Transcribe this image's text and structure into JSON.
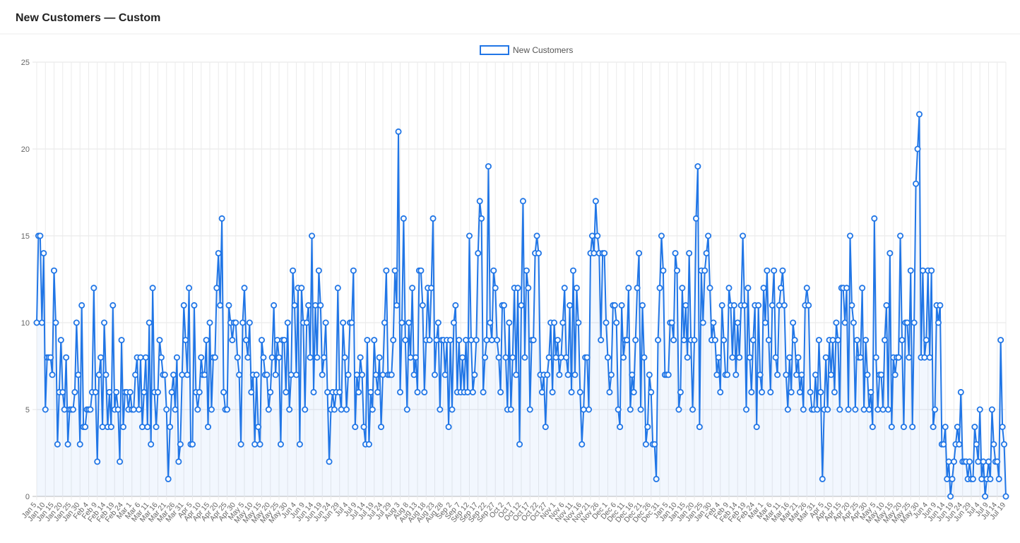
{
  "chart_data": {
    "type": "line",
    "title": "New Customers — Custom",
    "categories": [
      "Jan 5",
      null,
      null,
      null,
      null,
      "Jan 10",
      null,
      null,
      null,
      null,
      "Jan 15",
      null,
      null,
      null,
      null,
      "Jan 20",
      null,
      null,
      null,
      null,
      "Jan 25",
      null,
      null,
      null,
      null,
      "Jan 30",
      null,
      null,
      null,
      null,
      "Feb 4",
      null,
      null,
      null,
      null,
      "Feb 9",
      null,
      null,
      null,
      null,
      "Feb 14",
      null,
      null,
      null,
      null,
      "Feb 19",
      null,
      null,
      null,
      null,
      "Feb 24",
      null,
      null,
      null,
      null,
      "Mar 1",
      null,
      null,
      null,
      null,
      "Mar 6",
      null,
      null,
      null,
      null,
      "Mar 11",
      null,
      null,
      null,
      null,
      "Mar 16",
      null,
      null,
      null,
      null,
      "Mar 21",
      null,
      null,
      null,
      null,
      "Mar 26",
      null,
      null,
      null,
      null,
      "Mar 31",
      null,
      null,
      null,
      null,
      "Apr 5",
      null,
      null,
      null,
      null,
      "Apr 10",
      null,
      null,
      null,
      null,
      "Apr 15",
      null,
      null,
      null,
      null,
      "Apr 20",
      null,
      null,
      null,
      null,
      "Apr 25",
      null,
      null,
      null,
      null,
      "Apr 30",
      null,
      null,
      null,
      null,
      "May 5",
      null,
      null,
      null,
      null,
      "May 10",
      null,
      null,
      null,
      null,
      "May 15",
      null,
      null,
      null,
      null,
      "May 20",
      null,
      null,
      null,
      null,
      "May 25",
      null,
      null,
      null,
      null,
      "May 30",
      null,
      null,
      null,
      null,
      "Jun 4",
      null,
      null,
      null,
      null,
      "Jun 9",
      null,
      null,
      null,
      null,
      "Jun 14",
      null,
      null,
      null,
      null,
      "Jun 19",
      null,
      null,
      null,
      null,
      "Jun 24",
      null,
      null,
      null,
      null,
      "Jun 29",
      null,
      null,
      null,
      null,
      "Jul 4",
      null,
      null,
      null,
      null,
      "Jul 9",
      null,
      null,
      null,
      null,
      "Jul 14",
      null,
      null,
      null,
      null,
      "Jul 19",
      null,
      null,
      null,
      null,
      "Jul 24",
      null,
      null,
      null,
      null,
      "Jul 29",
      null,
      null,
      null,
      null,
      "Aug 3",
      null,
      null,
      null,
      null,
      "Aug 8",
      null,
      null,
      null,
      null,
      "Aug 13",
      null,
      null,
      null,
      null,
      "Aug 18",
      null,
      null,
      null,
      null,
      "Aug 23",
      null,
      null,
      null,
      null,
      "Aug 28",
      null,
      null,
      null,
      null,
      "Sep 2",
      null,
      null,
      null,
      null,
      "Sep 7",
      null,
      null,
      null,
      null,
      "Sep 12",
      null,
      null,
      null,
      null,
      "Sep 17",
      null,
      null,
      null,
      null,
      "Sep 22",
      null,
      null,
      null,
      null,
      "Sep 27",
      null,
      null,
      null,
      null,
      "Oct 2",
      null,
      null,
      null,
      null,
      "Oct 7",
      null,
      null,
      null,
      null,
      "Oct 12",
      null,
      null,
      null,
      null,
      "Oct 17",
      null,
      null,
      null,
      null,
      "Oct 22",
      null,
      null,
      null,
      null,
      "Oct 27",
      null,
      null,
      null,
      null,
      "Nov 1",
      null,
      null,
      null,
      null,
      "Nov 6",
      null,
      null,
      null,
      null,
      "Nov 11",
      null,
      null,
      null,
      null,
      "Nov 16",
      null,
      null,
      null,
      null,
      "Nov 21",
      null,
      null,
      null,
      null,
      "Nov 26",
      null,
      null,
      null,
      null,
      "Dec 1",
      null,
      null,
      null,
      null,
      "Dec 6",
      null,
      null,
      null,
      null,
      "Dec 11",
      null,
      null,
      null,
      null,
      "Dec 16",
      null,
      null,
      null,
      null,
      "Dec 21",
      null,
      null,
      null,
      null,
      "Dec 26",
      null,
      null,
      null,
      null,
      "Dec 31",
      null,
      null,
      null,
      null,
      "Jan 5",
      null,
      null,
      null,
      null,
      "Jan 10",
      null,
      null,
      null,
      null,
      "Jan 15",
      null,
      null,
      null,
      null,
      "Jan 20",
      null,
      null,
      null,
      null,
      "Jan 25",
      null,
      null,
      null,
      null,
      "Jan 30",
      null,
      null,
      null,
      null,
      "Feb 4",
      null,
      null,
      null,
      null,
      "Feb 9",
      null,
      null,
      null,
      null,
      "Feb 14",
      null,
      null,
      null,
      null,
      "Feb 19",
      null,
      null,
      null,
      null,
      "Feb 24",
      null,
      null,
      null,
      null,
      "Mar 1",
      null,
      null,
      null,
      null,
      "Mar 6",
      null,
      null,
      null,
      null,
      "Mar 11",
      null,
      null,
      null,
      null,
      "Mar 16",
      null,
      null,
      null,
      null,
      "Mar 21",
      null,
      null,
      null,
      null,
      "Mar 26",
      null,
      null,
      null,
      null,
      "Mar 31",
      null,
      null,
      null,
      null,
      "Apr 5",
      null,
      null,
      null,
      null,
      "Apr 10",
      null,
      null,
      null,
      null,
      "Apr 15",
      null,
      null,
      null,
      null,
      "Apr 20",
      null,
      null,
      null,
      null,
      "Apr 25",
      null,
      null,
      null,
      null,
      "Apr 30",
      null,
      null,
      null,
      null,
      "May 5",
      null,
      null,
      null,
      null,
      "May 10",
      null,
      null,
      null,
      null,
      "May 15",
      null,
      null,
      null,
      null,
      "May 20",
      null,
      null,
      null,
      null,
      "May 25",
      null,
      null,
      null,
      null,
      "May 30",
      null,
      null,
      null,
      null,
      "Jun 4",
      null,
      null,
      null,
      null,
      "Jun 9",
      null,
      null,
      null,
      null,
      "Jun 14",
      null,
      null,
      null,
      null,
      "Jun 19",
      null,
      null,
      null,
      null,
      "Jun 24",
      null,
      null,
      null,
      null,
      "Jun 29",
      null,
      null,
      null,
      null,
      "Jul 4",
      null,
      null,
      null,
      null,
      "Jul 9",
      null,
      null,
      null,
      null,
      "Jul 14",
      null,
      null,
      null,
      null,
      "Jul 19"
    ],
    "series": [
      {
        "name": "New Customers",
        "color": "#2176e6",
        "values": [
          10,
          15,
          15,
          10,
          14,
          5,
          8,
          8,
          8,
          7,
          13,
          10,
          3,
          6,
          9,
          6,
          5,
          8,
          3,
          5,
          5,
          5,
          6,
          10,
          7,
          3,
          11,
          4,
          4,
          5,
          5,
          5,
          6,
          12,
          6,
          2,
          7,
          8,
          4,
          10,
          7,
          4,
          6,
          4,
          11,
          5,
          6,
          5,
          2,
          9,
          4,
          6,
          6,
          5,
          6,
          5,
          5,
          7,
          8,
          5,
          8,
          4,
          6,
          8,
          4,
          10,
          3,
          12,
          6,
          4,
          6,
          9,
          8,
          7,
          7,
          5,
          1,
          4,
          6,
          7,
          5,
          8,
          2,
          3,
          7,
          11,
          9,
          7,
          12,
          3,
          3,
          11,
          6,
          5,
          6,
          8,
          7,
          7,
          9,
          4,
          10,
          5,
          8,
          8,
          12,
          14,
          11,
          16,
          6,
          5,
          5,
          11,
          10,
          9,
          10,
          10,
          8,
          7,
          3,
          10,
          12,
          9,
          8,
          10,
          6,
          7,
          3,
          7,
          4,
          3,
          9,
          8,
          7,
          7,
          5,
          6,
          8,
          11,
          7,
          9,
          8,
          3,
          9,
          9,
          6,
          10,
          5,
          7,
          13,
          11,
          7,
          12,
          3,
          12,
          10,
          5,
          10,
          11,
          8,
          15,
          6,
          11,
          8,
          13,
          11,
          7,
          8,
          10,
          6,
          2,
          5,
          6,
          5,
          6,
          12,
          6,
          5,
          10,
          8,
          5,
          7,
          10,
          10,
          13,
          4,
          7,
          6,
          8,
          7,
          4,
          3,
          9,
          3,
          6,
          5,
          9,
          7,
          6,
          8,
          4,
          7,
          10,
          13,
          7,
          7,
          7,
          9,
          13,
          11,
          21,
          6,
          10,
          16,
          9,
          5,
          10,
          8,
          12,
          7,
          8,
          6,
          13,
          13,
          11,
          6,
          9,
          12,
          9,
          12,
          16,
          7,
          9,
          10,
          5,
          9,
          9,
          7,
          9,
          4,
          9,
          5,
          10,
          11,
          6,
          9,
          6,
          8,
          6,
          9,
          6,
          15,
          9,
          6,
          7,
          9,
          14,
          17,
          16,
          6,
          8,
          9,
          19,
          10,
          9,
          13,
          12,
          9,
          8,
          6,
          11,
          11,
          8,
          5,
          10,
          5,
          8,
          12,
          7,
          12,
          3,
          11,
          17,
          8,
          13,
          12,
          5,
          9,
          9,
          14,
          15,
          14,
          7,
          6,
          7,
          4,
          7,
          8,
          10,
          6,
          10,
          8,
          9,
          7,
          8,
          10,
          12,
          8,
          7,
          11,
          6,
          13,
          7,
          12,
          10,
          6,
          3,
          5,
          8,
          8,
          5,
          14,
          15,
          14,
          17,
          15,
          14,
          9,
          14,
          14,
          10,
          8,
          6,
          7,
          11,
          11,
          10,
          5,
          4,
          11,
          8,
          9,
          9,
          12,
          5,
          7,
          6,
          9,
          12,
          14,
          5,
          11,
          8,
          3,
          4,
          7,
          6,
          3,
          3,
          1,
          9,
          12,
          15,
          13,
          7,
          7,
          7,
          10,
          10,
          9,
          14,
          13,
          5,
          6,
          12,
          9,
          11,
          8,
          14,
          9,
          5,
          9,
          16,
          19,
          4,
          13,
          10,
          13,
          14,
          15,
          12,
          9,
          10,
          9,
          7,
          8,
          6,
          11,
          9,
          7,
          7,
          12,
          11,
          8,
          11,
          7,
          10,
          8,
          11,
          15,
          11,
          5,
          12,
          8,
          6,
          9,
          11,
          4,
          11,
          7,
          6,
          12,
          10,
          13,
          9,
          6,
          11,
          13,
          8,
          7,
          11,
          12,
          13,
          11,
          7,
          5,
          8,
          6,
          10,
          9,
          7,
          8,
          6,
          7,
          5,
          11,
          12,
          11,
          6,
          5,
          5,
          7,
          5,
          9,
          6,
          1,
          5,
          8,
          5,
          9,
          7,
          9,
          6,
          10,
          9,
          5,
          12,
          12,
          10,
          12,
          5,
          15,
          11,
          10,
          5,
          9,
          8,
          8,
          12,
          5,
          9,
          7,
          5,
          6,
          4,
          16,
          8,
          5,
          7,
          7,
          5,
          9,
          11,
          5,
          14,
          4,
          8,
          7,
          8,
          8,
          15,
          9,
          4,
          10,
          10,
          8,
          13,
          4,
          10,
          18,
          20,
          22,
          8,
          13,
          8,
          9,
          13,
          8,
          13,
          4,
          5,
          11,
          10,
          11,
          3,
          3,
          4,
          1,
          2,
          0,
          1,
          2,
          3,
          4,
          3,
          6,
          2,
          2,
          2,
          1,
          2,
          1,
          1,
          4,
          3,
          2,
          5,
          1,
          2,
          0,
          1,
          2,
          1,
          5,
          3,
          2,
          2,
          1,
          9,
          4,
          3,
          0
        ]
      }
    ],
    "ylim": [
      0,
      25
    ],
    "yticks": [
      0,
      5,
      10,
      15,
      20,
      25
    ],
    "grid": true,
    "legend": "top"
  }
}
